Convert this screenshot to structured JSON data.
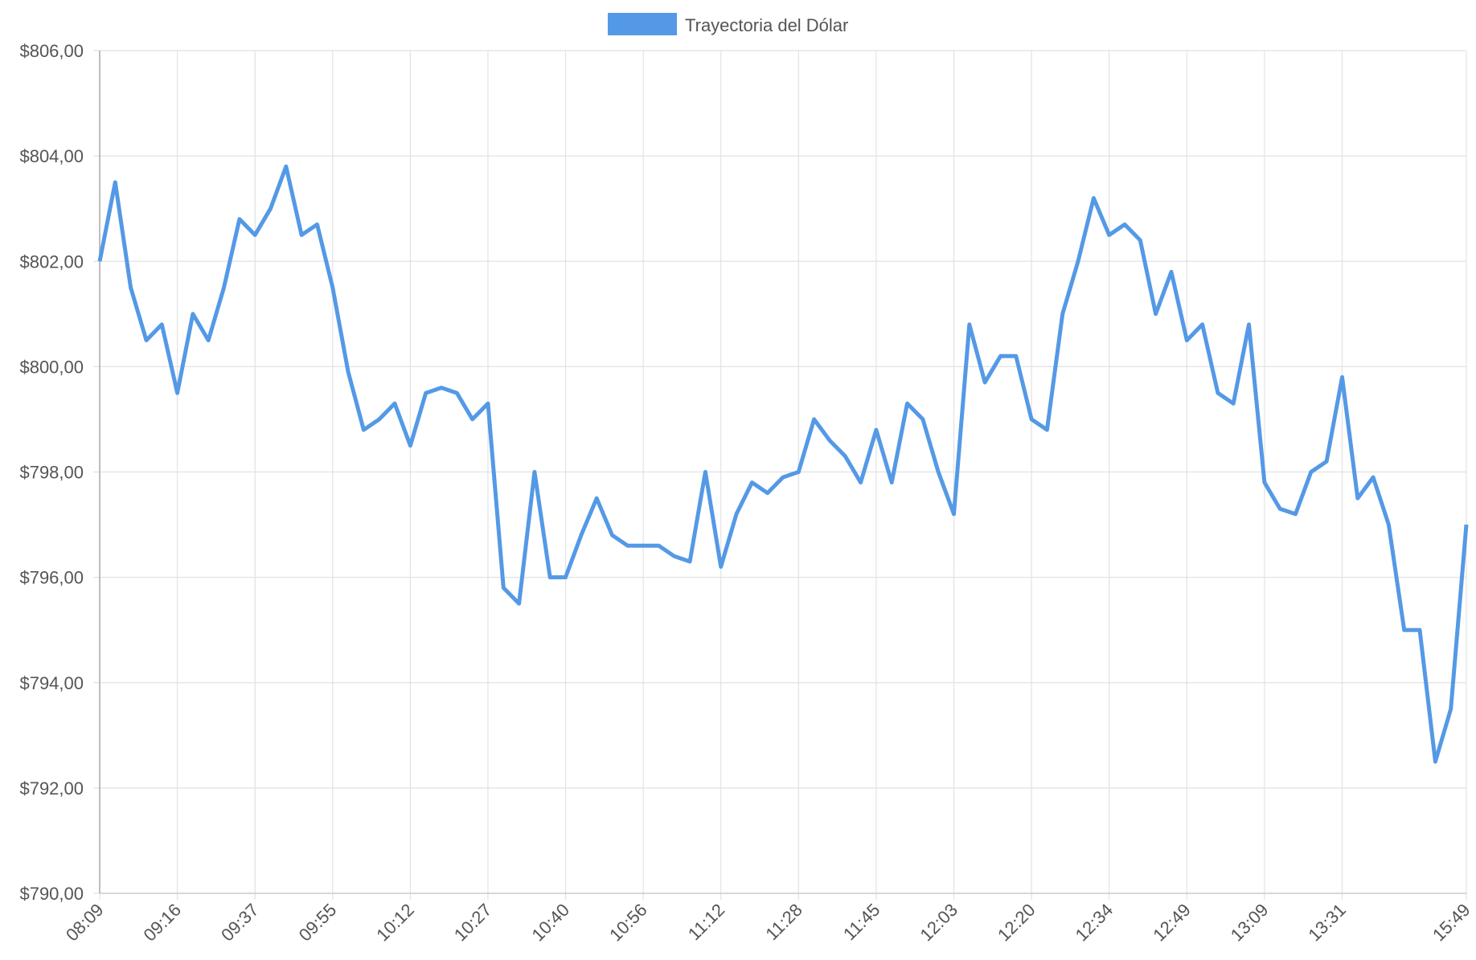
{
  "chart_data": {
    "type": "line",
    "legend": "top",
    "grid": true,
    "series": [
      {
        "name": "Trayectoria del Dólar",
        "color": "#5499e6",
        "values": [
          802.0,
          803.5,
          801.5,
          800.5,
          800.8,
          799.5,
          801.0,
          800.5,
          801.5,
          802.8,
          802.5,
          803.0,
          803.8,
          802.5,
          802.7,
          801.5,
          799.9,
          798.8,
          799.0,
          799.3,
          798.5,
          799.5,
          799.6,
          799.5,
          799.0,
          799.3,
          795.8,
          795.5,
          798.0,
          796.0,
          796.0,
          796.8,
          797.5,
          796.8,
          796.6,
          796.6,
          796.6,
          796.4,
          796.3,
          798.0,
          796.2,
          797.2,
          797.8,
          797.6,
          797.9,
          798.0,
          799.0,
          798.6,
          798.3,
          797.8,
          798.8,
          797.8,
          799.3,
          799.0,
          798.0,
          797.2,
          800.8,
          799.7,
          800.2,
          800.2,
          799.0,
          798.8,
          801.0,
          802.0,
          803.2,
          802.5,
          802.7,
          802.4,
          801.0,
          801.8,
          800.5,
          800.8,
          799.5,
          799.3,
          800.8,
          797.8,
          797.3,
          797.2,
          798.0,
          798.2,
          799.8,
          797.5,
          797.9,
          797.0,
          795.0,
          795.0,
          792.5,
          793.5,
          797.0
        ]
      }
    ],
    "categories": [
      "08:09",
      null,
      null,
      null,
      null,
      "09:16",
      null,
      null,
      null,
      null,
      "09:37",
      null,
      null,
      null,
      null,
      "09:55",
      null,
      null,
      null,
      null,
      "10:12",
      null,
      null,
      null,
      null,
      "10:27",
      null,
      null,
      null,
      null,
      "10:40",
      null,
      null,
      null,
      null,
      "10:56",
      null,
      null,
      null,
      null,
      "11:12",
      null,
      null,
      null,
      null,
      "11:28",
      null,
      null,
      null,
      null,
      "11:45",
      null,
      null,
      null,
      null,
      "12:03",
      null,
      null,
      null,
      null,
      "12:20",
      null,
      null,
      null,
      null,
      "12:34",
      null,
      null,
      null,
      null,
      "12:49",
      null,
      null,
      null,
      null,
      "13:09",
      null,
      null,
      null,
      null,
      "13:31",
      null,
      null,
      null,
      null,
      null,
      null,
      null,
      "15:49"
    ],
    "ylim": [
      790,
      806
    ],
    "yticks": [
      {
        "value": 790,
        "label": "$790,00"
      },
      {
        "value": 792,
        "label": "$792,00"
      },
      {
        "value": 794,
        "label": "$794,00"
      },
      {
        "value": 796,
        "label": "$796,00"
      },
      {
        "value": 798,
        "label": "$798,00"
      },
      {
        "value": 800,
        "label": "$800,00"
      },
      {
        "value": 802,
        "label": "$802,00"
      },
      {
        "value": 804,
        "label": "$804,00"
      },
      {
        "value": 806,
        "label": "$806,00"
      }
    ]
  }
}
